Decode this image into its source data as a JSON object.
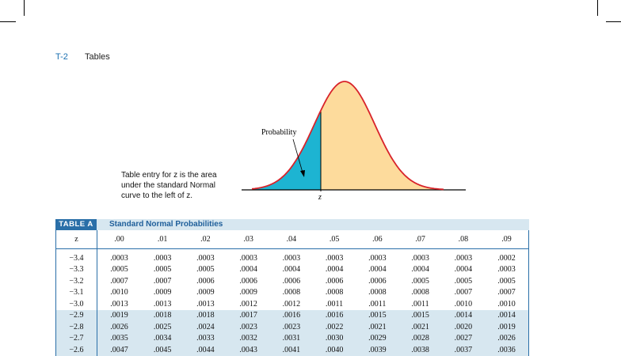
{
  "header": {
    "page": "T-2",
    "section": "Tables"
  },
  "figure": {
    "label": "Probability",
    "axis_label": "z",
    "caption": [
      "Table entry for z is the area",
      "under the standard Normal",
      "curve to the left of z."
    ]
  },
  "table": {
    "tag": "TABLE A",
    "title": "Standard Normal Probabilities",
    "columns": [
      "z",
      ".00",
      ".01",
      ".02",
      ".03",
      ".04",
      ".05",
      ".06",
      ".07",
      ".08",
      ".09"
    ],
    "rows": [
      [
        "−3.4",
        ".0003",
        ".0003",
        ".0003",
        ".0003",
        ".0003",
        ".0003",
        ".0003",
        ".0003",
        ".0003",
        ".0002"
      ],
      [
        "−3.3",
        ".0005",
        ".0005",
        ".0005",
        ".0004",
        ".0004",
        ".0004",
        ".0004",
        ".0004",
        ".0004",
        ".0003"
      ],
      [
        "−3.2",
        ".0007",
        ".0007",
        ".0006",
        ".0006",
        ".0006",
        ".0006",
        ".0006",
        ".0005",
        ".0005",
        ".0005"
      ],
      [
        "−3.1",
        ".0010",
        ".0009",
        ".0009",
        ".0009",
        ".0008",
        ".0008",
        ".0008",
        ".0008",
        ".0007",
        ".0007"
      ],
      [
        "−3.0",
        ".0013",
        ".0013",
        ".0013",
        ".0012",
        ".0012",
        ".0011",
        ".0011",
        ".0011",
        ".0010",
        ".0010"
      ],
      [
        "−2.9",
        ".0019",
        ".0018",
        ".0018",
        ".0017",
        ".0016",
        ".0016",
        ".0015",
        ".0015",
        ".0014",
        ".0014"
      ],
      [
        "−2.8",
        ".0026",
        ".0025",
        ".0024",
        ".0023",
        ".0023",
        ".0022",
        ".0021",
        ".0021",
        ".0020",
        ".0019"
      ],
      [
        "−2.7",
        ".0035",
        ".0034",
        ".0033",
        ".0032",
        ".0031",
        ".0030",
        ".0029",
        ".0028",
        ".0027",
        ".0026"
      ],
      [
        "−2.6",
        ".0047",
        ".0045",
        ".0044",
        ".0043",
        ".0041",
        ".0040",
        ".0039",
        ".0038",
        ".0037",
        ".0036"
      ]
    ]
  }
}
